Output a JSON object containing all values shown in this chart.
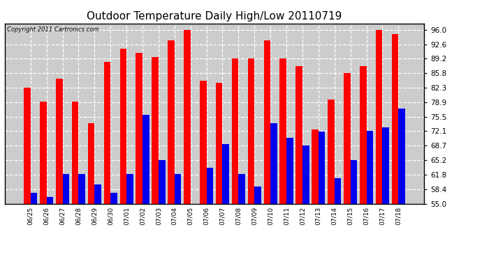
{
  "title": "Outdoor Temperature Daily High/Low 20110719",
  "copyright": "Copyright 2011 Cartronics.com",
  "dates": [
    "06/25",
    "06/26",
    "06/27",
    "06/28",
    "06/29",
    "06/30",
    "07/01",
    "07/02",
    "07/03",
    "07/04",
    "07/05",
    "07/06",
    "07/07",
    "07/08",
    "07/09",
    "07/10",
    "07/11",
    "07/12",
    "07/13",
    "07/14",
    "07/15",
    "07/16",
    "07/17",
    "07/18"
  ],
  "highs": [
    82.3,
    79.0,
    84.5,
    79.0,
    74.0,
    88.5,
    91.5,
    90.5,
    89.5,
    93.5,
    96.0,
    84.0,
    83.5,
    89.2,
    89.2,
    93.5,
    89.2,
    87.5,
    72.5,
    79.5,
    85.8,
    87.5,
    96.0,
    95.0
  ],
  "lows": [
    57.5,
    56.5,
    62.0,
    62.0,
    59.5,
    57.5,
    62.0,
    76.0,
    65.2,
    62.0,
    55.0,
    63.5,
    69.0,
    62.0,
    59.0,
    74.0,
    70.5,
    68.7,
    72.0,
    61.0,
    65.2,
    72.1,
    73.0,
    77.5
  ],
  "ylim_min": 55.0,
  "ylim_max": 97.5,
  "yticks": [
    55.0,
    58.4,
    61.8,
    65.2,
    68.7,
    72.1,
    75.5,
    78.9,
    82.3,
    85.8,
    89.2,
    92.6,
    96.0
  ],
  "bar_color_high": "#ff0000",
  "bar_color_low": "#0000ee",
  "background_color": "#ffffff",
  "plot_bg_color": "#cccccc",
  "grid_color": "#ffffff",
  "title_fontsize": 11,
  "bar_width": 0.42
}
